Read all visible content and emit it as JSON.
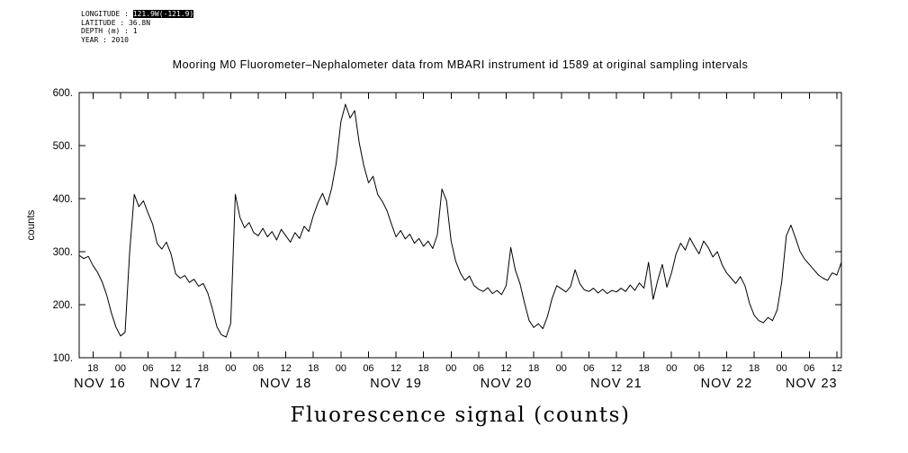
{
  "metadata": {
    "lines": [
      {
        "label": "LONGITUDE : ",
        "value": "121.9W(-121.9)"
      },
      {
        "label": "LATITUDE : ",
        "value": "36.8N"
      },
      {
        "label": "DEPTH (m) : ",
        "value": "1"
      },
      {
        "label": "YEAR : ",
        "value": "2010"
      }
    ]
  },
  "chart_data": {
    "type": "line",
    "title": "Mooring M0 Fluorometer–Nephalometer data from MBARI instrument id 1589 at original sampling intervals",
    "xlabel": "Fluorescence signal (counts)",
    "ylabel": "counts",
    "ylim": [
      100,
      600
    ],
    "y_ticks": [
      100,
      200,
      300,
      400,
      500,
      600
    ],
    "y_tick_labels": [
      "100.",
      "200.",
      "300.",
      "400.",
      "500.",
      "600."
    ],
    "x_unit": "hours since NOV 16 2010 00:00",
    "x_hours_start": 15,
    "x_hours_end": 181,
    "x_hours_step": 1,
    "x_tick_first": 18,
    "x_tick_step": 6,
    "day_labels": [
      "NOV 16",
      "NOV 17",
      "NOV 18",
      "NOV 19",
      "NOV 20",
      "NOV 21",
      "NOV 22",
      "NOV 23"
    ],
    "day_start_hours": [
      0,
      24,
      48,
      72,
      96,
      120,
      144,
      168
    ],
    "grid": false,
    "line_color": "#000000",
    "y_counts": [
      293,
      287,
      291,
      274,
      261,
      243,
      218,
      185,
      158,
      141,
      148,
      300,
      408,
      385,
      396,
      373,
      352,
      315,
      305,
      318,
      296,
      258,
      250,
      255,
      242,
      248,
      235,
      240,
      222,
      192,
      158,
      143,
      139,
      165,
      408,
      365,
      345,
      355,
      336,
      330,
      344,
      328,
      338,
      322,
      342,
      330,
      318,
      336,
      325,
      348,
      338,
      368,
      392,
      410,
      388,
      420,
      468,
      545,
      578,
      552,
      566,
      505,
      462,
      430,
      442,
      408,
      395,
      378,
      352,
      328,
      340,
      324,
      333,
      316,
      325,
      310,
      320,
      306,
      332,
      418,
      396,
      320,
      282,
      260,
      246,
      254,
      236,
      229,
      225,
      232,
      221,
      227,
      219,
      236,
      308,
      265,
      240,
      203,
      170,
      157,
      164,
      155,
      178,
      212,
      236,
      230,
      224,
      234,
      266,
      240,
      228,
      225,
      231,
      222,
      229,
      221,
      227,
      224,
      231,
      225,
      237,
      227,
      241,
      231,
      280,
      210,
      246,
      276,
      233,
      260,
      296,
      316,
      303,
      326,
      310,
      296,
      320,
      308,
      290,
      300,
      276,
      260,
      250,
      240,
      253,
      236,
      202,
      180,
      170,
      166,
      176,
      170,
      190,
      243,
      330,
      350,
      326,
      300,
      286,
      276,
      266,
      256,
      250,
      246,
      260,
      256,
      280
    ]
  }
}
